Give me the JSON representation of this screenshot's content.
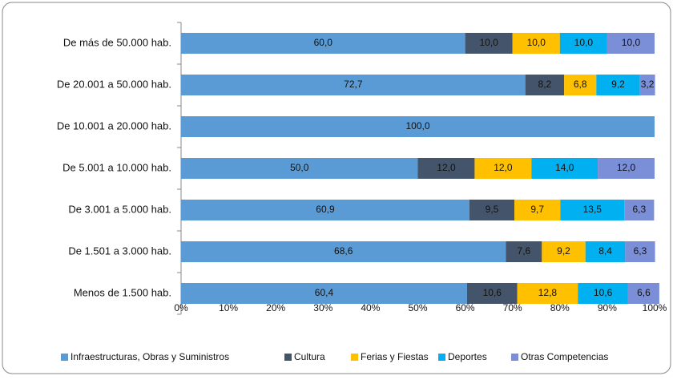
{
  "chart_data": {
    "type": "stacked-bar-horizontal",
    "categories": [
      "De más de 50.000 hab.",
      "De 20.001 a 50.000 hab.",
      "De 10.001 a 20.000 hab.",
      "De 5.001 a 10.000 hab.",
      "De 3.001 a 5.000 hab.",
      "De 1.501 a 3.000 hab.",
      "Menos de 1.500 hab."
    ],
    "series": [
      {
        "name": "Infraestructuras, Obras y Suministros",
        "color": "#5b9bd5",
        "values": [
          60.0,
          72.7,
          100.0,
          50.0,
          60.9,
          68.6,
          60.4
        ],
        "value_labels": [
          "60,0",
          "72,7",
          "100,0",
          "50,0",
          "60,9",
          "68,6",
          "60,4"
        ]
      },
      {
        "name": "Cultura",
        "color": "#44546a",
        "values": [
          10.0,
          8.2,
          0,
          12.0,
          9.5,
          7.6,
          10.6
        ],
        "value_labels": [
          "10,0",
          "8,2",
          null,
          "12,0",
          "9,5",
          "7,6",
          "10,6"
        ]
      },
      {
        "name": "Ferias y Fiestas",
        "color": "#ffc000",
        "values": [
          10.0,
          6.8,
          0,
          12.0,
          9.7,
          9.2,
          12.8
        ],
        "value_labels": [
          "10,0",
          "6,8",
          null,
          "12,0",
          "9,7",
          "9,2",
          "12,8"
        ]
      },
      {
        "name": "Deportes",
        "color": "#00b0f0",
        "values": [
          10.0,
          9.2,
          0,
          14.0,
          13.5,
          8.4,
          10.6
        ],
        "value_labels": [
          "10,0",
          "9,2",
          null,
          "14,0",
          "13,5",
          "8,4",
          "10,6"
        ]
      },
      {
        "name": "Otras Competencias",
        "color": "#7b8fd8",
        "values": [
          10.0,
          3.2,
          0,
          12.0,
          6.3,
          6.3,
          6.6
        ],
        "value_labels": [
          "10,0",
          "3,2",
          null,
          "12,0",
          "6,3",
          "6,3",
          "6,6"
        ]
      }
    ],
    "xlim": [
      0,
      100
    ],
    "xticks": [
      {
        "value": 0,
        "label": "0%"
      },
      {
        "value": 10,
        "label": "10%"
      },
      {
        "value": 20,
        "label": "20%"
      },
      {
        "value": 30,
        "label": "30%"
      },
      {
        "value": 40,
        "label": "40%"
      },
      {
        "value": 50,
        "label": "50%"
      },
      {
        "value": 60,
        "label": "60%"
      },
      {
        "value": 70,
        "label": "70%"
      },
      {
        "value": 80,
        "label": "80%"
      },
      {
        "value": 90,
        "label": "90%"
      },
      {
        "value": 100,
        "label": "100%"
      }
    ],
    "legend": "bottom"
  }
}
